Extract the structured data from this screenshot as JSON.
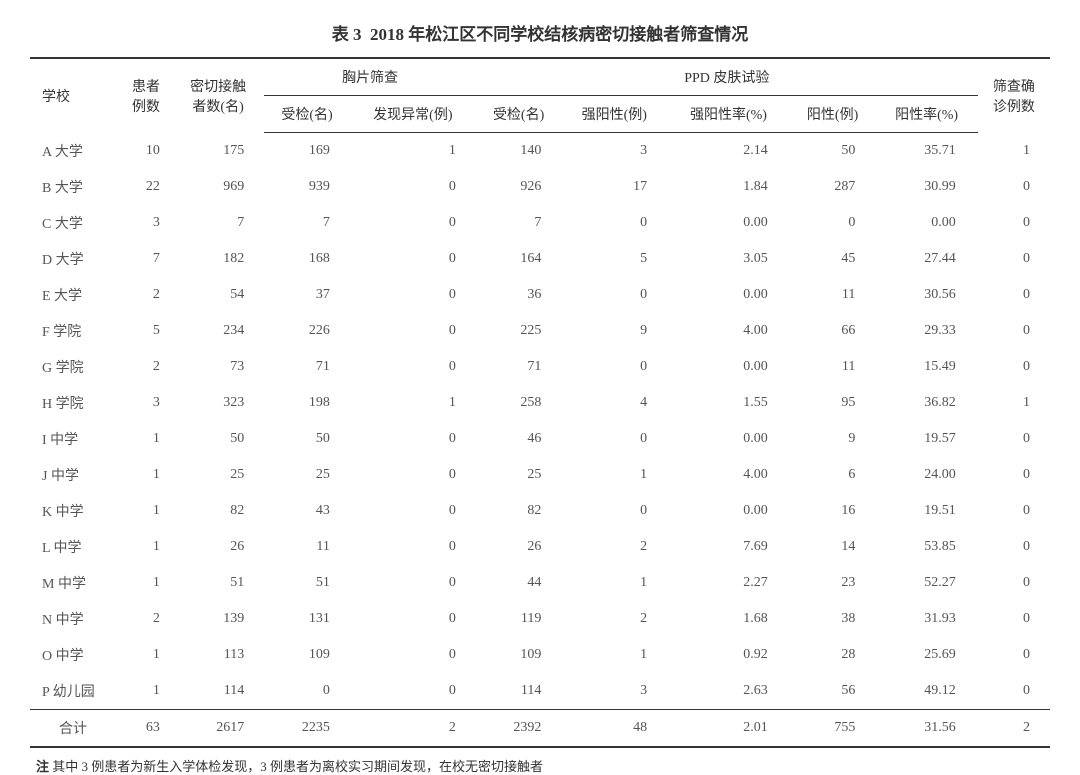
{
  "title_prefix": "表 3",
  "title_text": "2018 年松江区不同学校结核病密切接触者筛查情况",
  "headers": {
    "school": "学校",
    "patients": "患者\n例数",
    "contacts": "密切接触\n者数(名)",
    "chest_group": "胸片筛查",
    "chest_exam": "受检(名)",
    "chest_abnormal": "发现异常(例)",
    "ppd_group": "PPD 皮肤试验",
    "ppd_exam": "受检(名)",
    "ppd_strong": "强阳性(例)",
    "ppd_strong_rate": "强阳性率(%)",
    "ppd_pos": "阳性(例)",
    "ppd_pos_rate": "阳性率(%)",
    "confirmed": "筛查确\n诊例数"
  },
  "rows": [
    {
      "school": "A 大学",
      "patients": "10",
      "contacts": "175",
      "chest_exam": "169",
      "chest_abnormal": "1",
      "ppd_exam": "140",
      "ppd_strong": "3",
      "ppd_strong_rate": "2.14",
      "ppd_pos": "50",
      "ppd_pos_rate": "35.71",
      "confirmed": "1"
    },
    {
      "school": "B 大学",
      "patients": "22",
      "contacts": "969",
      "chest_exam": "939",
      "chest_abnormal": "0",
      "ppd_exam": "926",
      "ppd_strong": "17",
      "ppd_strong_rate": "1.84",
      "ppd_pos": "287",
      "ppd_pos_rate": "30.99",
      "confirmed": "0"
    },
    {
      "school": "C 大学",
      "patients": "3",
      "contacts": "7",
      "chest_exam": "7",
      "chest_abnormal": "0",
      "ppd_exam": "7",
      "ppd_strong": "0",
      "ppd_strong_rate": "0.00",
      "ppd_pos": "0",
      "ppd_pos_rate": "0.00",
      "confirmed": "0"
    },
    {
      "school": "D 大学",
      "patients": "7",
      "contacts": "182",
      "chest_exam": "168",
      "chest_abnormal": "0",
      "ppd_exam": "164",
      "ppd_strong": "5",
      "ppd_strong_rate": "3.05",
      "ppd_pos": "45",
      "ppd_pos_rate": "27.44",
      "confirmed": "0"
    },
    {
      "school": "E 大学",
      "patients": "2",
      "contacts": "54",
      "chest_exam": "37",
      "chest_abnormal": "0",
      "ppd_exam": "36",
      "ppd_strong": "0",
      "ppd_strong_rate": "0.00",
      "ppd_pos": "11",
      "ppd_pos_rate": "30.56",
      "confirmed": "0"
    },
    {
      "school": "F 学院",
      "patients": "5",
      "contacts": "234",
      "chest_exam": "226",
      "chest_abnormal": "0",
      "ppd_exam": "225",
      "ppd_strong": "9",
      "ppd_strong_rate": "4.00",
      "ppd_pos": "66",
      "ppd_pos_rate": "29.33",
      "confirmed": "0"
    },
    {
      "school": "G 学院",
      "patients": "2",
      "contacts": "73",
      "chest_exam": "71",
      "chest_abnormal": "0",
      "ppd_exam": "71",
      "ppd_strong": "0",
      "ppd_strong_rate": "0.00",
      "ppd_pos": "11",
      "ppd_pos_rate": "15.49",
      "confirmed": "0"
    },
    {
      "school": "H 学院",
      "patients": "3",
      "contacts": "323",
      "chest_exam": "198",
      "chest_abnormal": "1",
      "ppd_exam": "258",
      "ppd_strong": "4",
      "ppd_strong_rate": "1.55",
      "ppd_pos": "95",
      "ppd_pos_rate": "36.82",
      "confirmed": "1"
    },
    {
      "school": "I 中学",
      "patients": "1",
      "contacts": "50",
      "chest_exam": "50",
      "chest_abnormal": "0",
      "ppd_exam": "46",
      "ppd_strong": "0",
      "ppd_strong_rate": "0.00",
      "ppd_pos": "9",
      "ppd_pos_rate": "19.57",
      "confirmed": "0"
    },
    {
      "school": "J 中学",
      "patients": "1",
      "contacts": "25",
      "chest_exam": "25",
      "chest_abnormal": "0",
      "ppd_exam": "25",
      "ppd_strong": "1",
      "ppd_strong_rate": "4.00",
      "ppd_pos": "6",
      "ppd_pos_rate": "24.00",
      "confirmed": "0"
    },
    {
      "school": "K 中学",
      "patients": "1",
      "contacts": "82",
      "chest_exam": "43",
      "chest_abnormal": "0",
      "ppd_exam": "82",
      "ppd_strong": "0",
      "ppd_strong_rate": "0.00",
      "ppd_pos": "16",
      "ppd_pos_rate": "19.51",
      "confirmed": "0"
    },
    {
      "school": "L 中学",
      "patients": "1",
      "contacts": "26",
      "chest_exam": "11",
      "chest_abnormal": "0",
      "ppd_exam": "26",
      "ppd_strong": "2",
      "ppd_strong_rate": "7.69",
      "ppd_pos": "14",
      "ppd_pos_rate": "53.85",
      "confirmed": "0"
    },
    {
      "school": "M 中学",
      "patients": "1",
      "contacts": "51",
      "chest_exam": "51",
      "chest_abnormal": "0",
      "ppd_exam": "44",
      "ppd_strong": "1",
      "ppd_strong_rate": "2.27",
      "ppd_pos": "23",
      "ppd_pos_rate": "52.27",
      "confirmed": "0"
    },
    {
      "school": "N 中学",
      "patients": "2",
      "contacts": "139",
      "chest_exam": "131",
      "chest_abnormal": "0",
      "ppd_exam": "119",
      "ppd_strong": "2",
      "ppd_strong_rate": "1.68",
      "ppd_pos": "38",
      "ppd_pos_rate": "31.93",
      "confirmed": "0"
    },
    {
      "school": "O 中学",
      "patients": "1",
      "contacts": "113",
      "chest_exam": "109",
      "chest_abnormal": "0",
      "ppd_exam": "109",
      "ppd_strong": "1",
      "ppd_strong_rate": "0.92",
      "ppd_pos": "28",
      "ppd_pos_rate": "25.69",
      "confirmed": "0"
    },
    {
      "school": "P 幼儿园",
      "patients": "1",
      "contacts": "114",
      "chest_exam": "0",
      "chest_abnormal": "0",
      "ppd_exam": "114",
      "ppd_strong": "3",
      "ppd_strong_rate": "2.63",
      "ppd_pos": "56",
      "ppd_pos_rate": "49.12",
      "confirmed": "0"
    }
  ],
  "total": {
    "school": "合计",
    "patients": "63",
    "contacts": "2617",
    "chest_exam": "2235",
    "chest_abnormal": "2",
    "ppd_exam": "2392",
    "ppd_strong": "48",
    "ppd_strong_rate": "2.01",
    "ppd_pos": "755",
    "ppd_pos_rate": "31.56",
    "confirmed": "2"
  },
  "footnote_label": "注",
  "footnote_text": "其中 3 例患者为新生入学体检发现，3 例患者为离校实习期间发现，在校无密切接触者",
  "style": {
    "type": "table",
    "columns": 11,
    "border_color": "#333333",
    "text_color": "#555555",
    "header_color": "#333333",
    "background_color": "#ffffff",
    "title_fontsize": 17,
    "body_fontsize": 14,
    "footnote_fontsize": 13,
    "top_rule_width": 2,
    "mid_rule_width": 1,
    "bottom_rule_width": 2,
    "row_padding_v": 8
  }
}
